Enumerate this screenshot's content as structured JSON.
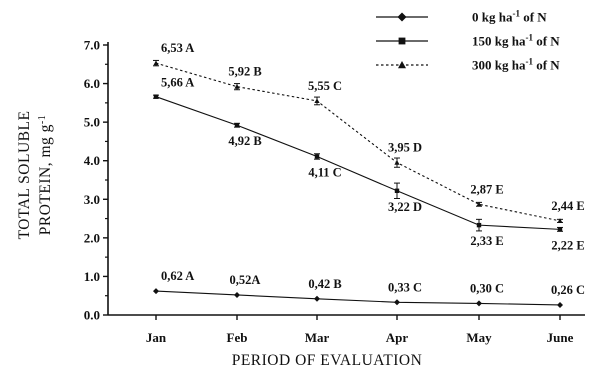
{
  "chart_data": {
    "type": "line",
    "title": "",
    "xlabel": "PERIOD OF EVALUATION",
    "ylabel_lines": [
      "TOTAL SOLUBLE",
      "PROTEIN, mg g"
    ],
    "ylabel_sup": "-1",
    "categories": [
      "Jan",
      "Feb",
      "Mar",
      "Apr",
      "May",
      "June"
    ],
    "ylim": [
      0,
      7
    ],
    "yticks": [
      "0.0",
      "1.0",
      "2.0",
      "3.0",
      "4.0",
      "5.0",
      "6.0",
      "7.0"
    ],
    "grid": false,
    "legend_position": "top-right",
    "series": [
      {
        "name": "0 kg ha-1 of N",
        "name_parts": [
          "0 kg ha",
          "-1",
          " of N"
        ],
        "marker": "diamond",
        "line_style": "solid",
        "values": [
          0.62,
          0.52,
          0.42,
          0.33,
          0.3,
          0.26
        ],
        "errors": [
          0,
          0,
          0,
          0,
          0,
          0
        ],
        "labels": [
          "0,62 A",
          "0,52A",
          "0,42 B",
          "0,33 C",
          "0,30 C",
          "0,26 C"
        ],
        "label_side": "above"
      },
      {
        "name": "150 kg ha-1 of N",
        "name_parts": [
          "150 kg ha",
          "-1",
          " of N"
        ],
        "marker": "square",
        "line_style": "solid",
        "values": [
          5.66,
          4.92,
          4.11,
          3.22,
          2.33,
          2.22
        ],
        "errors": [
          0.04,
          0.05,
          0.07,
          0.2,
          0.15,
          0.05
        ],
        "labels": [
          "5,66 A",
          "4,92 B",
          "4,11 C",
          "3,22 D",
          "2,33 E",
          "2,22 E"
        ],
        "label_side": "below"
      },
      {
        "name": "300 kg ha-1 of N",
        "name_parts": [
          "300 kg ha",
          "-1",
          " of N"
        ],
        "marker": "triangle",
        "line_style": "dotted",
        "values": [
          6.53,
          5.92,
          5.55,
          3.95,
          2.87,
          2.44
        ],
        "errors": [
          0.07,
          0.08,
          0.1,
          0.12,
          0.05,
          0.04
        ],
        "labels": [
          "6,53 A",
          "5,92 B",
          "5,55 C",
          "3,95 D",
          "2,87 E",
          "2,44 E"
        ],
        "label_side": "above"
      }
    ]
  }
}
